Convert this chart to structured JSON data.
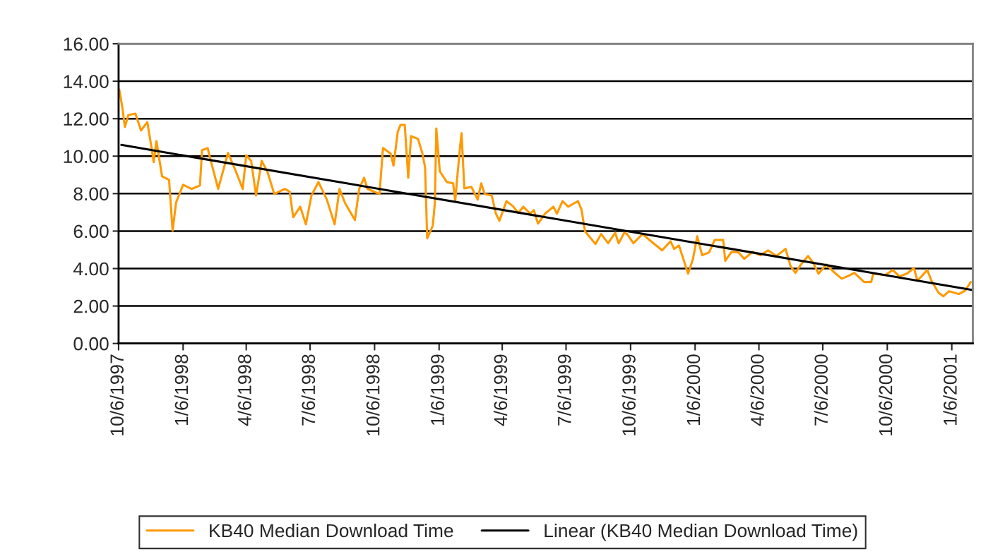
{
  "chart_data": {
    "type": "line",
    "x": [
      "1997-10-07",
      "1997-10-11",
      "1997-10-15",
      "1997-10-20",
      "1997-10-30",
      "1997-11-07",
      "1997-11-16",
      "1997-11-22",
      "1997-11-25",
      "1997-11-29",
      "1997-12-07",
      "1997-12-17",
      "1997-12-22",
      "1997-12-27",
      "1998-01-06",
      "1998-01-18",
      "1998-01-30",
      "1998-02-02",
      "1998-02-10",
      "1998-02-15",
      "1998-02-25",
      "1998-03-11",
      "1998-03-21",
      "1998-04-01",
      "1998-04-06",
      "1998-04-13",
      "1998-04-20",
      "1998-04-28",
      "1998-05-06",
      "1998-05-16",
      "1998-05-31",
      "1998-06-04",
      "1998-06-07",
      "1998-06-12",
      "1998-06-22",
      "1998-06-30",
      "1998-07-08",
      "1998-07-18",
      "1998-07-30",
      "1998-08-10",
      "1998-08-17",
      "1998-08-25",
      "1998-09-08",
      "1998-09-14",
      "1998-09-21",
      "1998-09-26",
      "1998-10-13",
      "1998-10-18",
      "1998-10-29",
      "1998-11-02",
      "1998-11-08",
      "1998-11-12",
      "1998-11-18",
      "1998-11-23",
      "1998-11-27",
      "1998-12-07",
      "1998-12-13",
      "1998-12-17",
      "1998-12-20",
      "1998-12-28",
      "1998-12-31",
      "1999-01-02",
      "1999-01-07",
      "1999-01-17",
      "1999-01-26",
      "1999-01-29",
      "1999-02-01",
      "1999-02-05",
      "1999-02-07",
      "1999-02-11",
      "1999-02-21",
      "1999-03-02",
      "1999-03-07",
      "1999-03-12",
      "1999-03-22",
      "1999-03-28",
      "1999-04-02",
      "1999-04-12",
      "1999-04-21",
      "1999-04-29",
      "1999-05-06",
      "1999-05-16",
      "1999-05-21",
      "1999-05-27",
      "1999-06-06",
      "1999-06-18",
      "1999-06-23",
      "1999-07-01",
      "1999-07-09",
      "1999-07-23",
      "1999-07-28",
      "1999-08-02",
      "1999-08-17",
      "1999-08-25",
      "1999-09-04",
      "1999-09-14",
      "1999-09-19",
      "1999-09-27",
      "1999-10-01",
      "1999-10-10",
      "1999-10-23",
      "1999-11-04",
      "1999-11-20",
      "1999-12-02",
      "1999-12-07",
      "1999-12-14",
      "1999-12-27",
      "2000-01-03",
      "2000-01-09",
      "2000-01-16",
      "2000-01-26",
      "2000-02-03",
      "2000-02-15",
      "2000-02-18",
      "2000-02-27",
      "2000-03-08",
      "2000-03-16",
      "2000-03-28",
      "2000-04-08",
      "2000-04-19",
      "2000-05-01",
      "2000-05-14",
      "2000-05-21",
      "2000-05-28",
      "2000-06-05",
      "2000-06-15",
      "2000-06-22",
      "2000-06-30",
      "2000-07-11",
      "2000-07-21",
      "2000-08-02",
      "2000-08-10",
      "2000-08-20",
      "2000-09-03",
      "2000-09-13",
      "2000-09-16",
      "2000-10-03",
      "2000-10-14",
      "2000-10-23",
      "2000-11-03",
      "2000-11-13",
      "2000-11-18",
      "2000-12-02",
      "2000-12-08",
      "2000-12-18",
      "2000-12-25",
      "2001-01-02",
      "2001-01-16",
      "2001-01-25",
      "2001-02-02"
    ],
    "series": [
      {
        "name": "KB40 Median Download Time",
        "color": "#ff9900",
        "values": [
          13.55,
          12.69,
          11.56,
          12.2,
          12.27,
          11.37,
          11.82,
          10.43,
          9.68,
          10.8,
          8.92,
          8.73,
          6.02,
          7.53,
          8.47,
          8.25,
          8.43,
          10.32,
          10.43,
          9.68,
          8.25,
          10.17,
          9.3,
          8.25,
          10.05,
          9.75,
          7.9,
          9.75,
          9.19,
          7.98,
          8.25,
          8.17,
          8.1,
          6.74,
          7.3,
          6.36,
          7.9,
          8.62,
          7.68,
          6.36,
          8.25,
          7.49,
          6.59,
          8.25,
          8.85,
          8.25,
          7.98,
          10.43,
          10.13,
          9.49,
          11.3,
          11.67,
          11.67,
          8.85,
          11.07,
          10.92,
          10.17,
          9.41,
          5.61,
          6.29,
          7.53,
          11.48,
          9.19,
          8.62,
          8.55,
          7.6,
          8.92,
          10.54,
          11.22,
          8.28,
          8.36,
          7.68,
          8.55,
          7.98,
          7.9,
          6.93,
          6.55,
          7.6,
          7.34,
          6.97,
          7.3,
          6.93,
          7.12,
          6.4,
          6.93,
          7.3,
          6.93,
          7.6,
          7.3,
          7.6,
          7.15,
          5.99,
          5.31,
          5.84,
          5.35,
          5.91,
          5.35,
          5.91,
          5.84,
          5.35,
          5.84,
          5.46,
          4.97,
          5.46,
          5.05,
          5.23,
          3.73,
          4.52,
          5.72,
          4.71,
          4.86,
          5.53,
          5.53,
          4.41,
          4.89,
          4.86,
          4.52,
          4.89,
          4.71,
          4.97,
          4.67,
          5.05,
          4.14,
          3.77,
          4.22,
          4.67,
          4.33,
          3.73,
          4.22,
          3.84,
          3.46,
          3.58,
          3.77,
          3.28,
          3.28,
          3.73,
          3.65,
          3.92,
          3.58,
          3.73,
          4.03,
          3.35,
          3.92,
          3.35,
          2.71,
          2.52,
          2.79,
          2.64,
          2.82,
          3.28
        ]
      },
      {
        "name": "Linear (KB40 Median Download Time)",
        "color": "#000000",
        "type": "line",
        "x": [
          "1997-10-10",
          "2001-02-05"
        ],
        "values": [
          10.6,
          2.85
        ]
      }
    ],
    "xlim": [
      "1997-10-06",
      "2001-02-05"
    ],
    "xticks": [
      {
        "value": "1997-10-06",
        "label": "10/6/1997"
      },
      {
        "value": "1998-01-06",
        "label": "1/6/1998"
      },
      {
        "value": "1998-04-06",
        "label": "4/6/1998"
      },
      {
        "value": "1998-07-06",
        "label": "7/6/1998"
      },
      {
        "value": "1998-10-06",
        "label": "10/6/1998"
      },
      {
        "value": "1999-01-06",
        "label": "1/6/1999"
      },
      {
        "value": "1999-04-06",
        "label": "4/6/1999"
      },
      {
        "value": "1999-07-06",
        "label": "7/6/1999"
      },
      {
        "value": "1999-10-06",
        "label": "10/6/1999"
      },
      {
        "value": "2000-01-06",
        "label": "1/6/2000"
      },
      {
        "value": "2000-04-06",
        "label": "4/6/2000"
      },
      {
        "value": "2000-07-06",
        "label": "7/6/2000"
      },
      {
        "value": "2000-10-06",
        "label": "10/6/2000"
      },
      {
        "value": "2001-01-06",
        "label": "1/6/2001"
      }
    ],
    "ylim": [
      0,
      16
    ],
    "yticks": [
      {
        "value": 0,
        "label": "0.00"
      },
      {
        "value": 2,
        "label": "2.00"
      },
      {
        "value": 4,
        "label": "4.00"
      },
      {
        "value": 6,
        "label": "6.00"
      },
      {
        "value": 8,
        "label": "8.00"
      },
      {
        "value": 10,
        "label": "10.00"
      },
      {
        "value": 12,
        "label": "12.00"
      },
      {
        "value": 14,
        "label": "14.00"
      },
      {
        "value": 16,
        "label": "16.00"
      }
    ],
    "grid": "y",
    "legend": "bottom",
    "marker": "none",
    "line_style": "solid"
  }
}
